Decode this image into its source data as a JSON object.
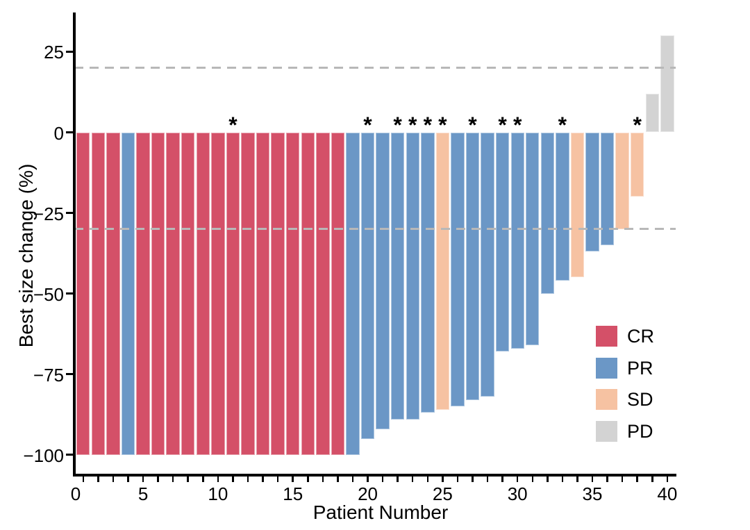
{
  "chart_data": {
    "type": "bar",
    "subtype": "waterfall",
    "title": "",
    "xlabel": "Patient Number",
    "ylabel": "Best size change (%)",
    "xlim": [
      0,
      40
    ],
    "ylim": [
      -105,
      35
    ],
    "grid": false,
    "x_ticks": [
      0,
      5,
      10,
      15,
      20,
      25,
      30,
      35,
      40
    ],
    "x_minor_ticks_at_every_bar": true,
    "y_ticks": [
      25,
      0,
      -25,
      -50,
      -75,
      -100
    ],
    "y_tick_labels": [
      "25",
      "0",
      "−25",
      "−50",
      "−75",
      "−100"
    ],
    "reference_lines": [
      20,
      -30
    ],
    "reference_line_style": "dashed",
    "reference_line_color": "#b8b8b8",
    "legend_position": "right-middle",
    "legend": [
      {
        "label": "CR",
        "color": "#d45068"
      },
      {
        "label": "PR",
        "color": "#6b97c6"
      },
      {
        "label": "SD",
        "color": "#f6c2a2"
      },
      {
        "label": "PD",
        "color": "#d3d3d3"
      }
    ],
    "star_symbol": "*",
    "starred_patients": [
      11,
      20,
      22,
      23,
      24,
      25,
      27,
      29,
      30,
      33,
      38
    ],
    "patients": [
      {
        "patient": 1,
        "value": -100,
        "response": "CR",
        "star": false
      },
      {
        "patient": 2,
        "value": -100,
        "response": "CR",
        "star": false
      },
      {
        "patient": 3,
        "value": -100,
        "response": "CR",
        "star": false
      },
      {
        "patient": 4,
        "value": -100,
        "response": "PR",
        "star": false
      },
      {
        "patient": 5,
        "value": -100,
        "response": "CR",
        "star": false
      },
      {
        "patient": 6,
        "value": -100,
        "response": "CR",
        "star": false
      },
      {
        "patient": 7,
        "value": -100,
        "response": "CR",
        "star": false
      },
      {
        "patient": 8,
        "value": -100,
        "response": "CR",
        "star": false
      },
      {
        "patient": 9,
        "value": -100,
        "response": "CR",
        "star": false
      },
      {
        "patient": 10,
        "value": -100,
        "response": "CR",
        "star": false
      },
      {
        "patient": 11,
        "value": -100,
        "response": "CR",
        "star": true
      },
      {
        "patient": 12,
        "value": -100,
        "response": "CR",
        "star": false
      },
      {
        "patient": 13,
        "value": -100,
        "response": "CR",
        "star": false
      },
      {
        "pat": 14,
        "patient": 14,
        "value": -100,
        "response": "CR",
        "star": false
      },
      {
        "patient": 15,
        "value": -100,
        "response": "CR",
        "star": false
      },
      {
        "patient": 16,
        "value": -100,
        "response": "CR",
        "star": false
      },
      {
        "patient": 17,
        "value": -100,
        "response": "CR",
        "star": false
      },
      {
        "patient": 18,
        "value": -100,
        "response": "CR",
        "star": false
      },
      {
        "patient": 19,
        "value": -100,
        "response": "PR",
        "star": false
      },
      {
        "patient": 20,
        "value": -95,
        "response": "PR",
        "star": true
      },
      {
        "patient": 21,
        "value": -92,
        "response": "PR",
        "star": false
      },
      {
        "patient": 22,
        "value": -89,
        "response": "PR",
        "star": true
      },
      {
        "patient": 23,
        "value": -89,
        "response": "PR",
        "star": true
      },
      {
        "patient": 24,
        "value": -87,
        "response": "PR",
        "star": true
      },
      {
        "patient": 25,
        "value": -86,
        "response": "SD",
        "star": true
      },
      {
        "patient": 26,
        "value": -85,
        "response": "PR",
        "star": false
      },
      {
        "patient": 27,
        "value": -83,
        "response": "PR",
        "star": true
      },
      {
        "patient": 28,
        "value": -82,
        "response": "PR",
        "star": false
      },
      {
        "patient": 29,
        "value": -68,
        "response": "PR",
        "star": true
      },
      {
        "patient": 30,
        "value": -67,
        "response": "PR",
        "star": true
      },
      {
        "patient": 31,
        "value": -66,
        "response": "PR",
        "star": false
      },
      {
        "patient": 32,
        "value": -50,
        "response": "PR",
        "star": false
      },
      {
        "patient": 33,
        "value": -46,
        "response": "PR",
        "star": true
      },
      {
        "patient": 34,
        "value": -45,
        "response": "SD",
        "star": false
      },
      {
        "patient": 35,
        "value": -37,
        "response": "PR",
        "star": false
      },
      {
        "patient": 36,
        "value": -35,
        "response": "PR",
        "star": false
      },
      {
        "patient": 37,
        "value": -30,
        "response": "SD",
        "star": false
      },
      {
        "patient": 38,
        "value": -20,
        "response": "SD",
        "star": true
      },
      {
        "patient": 39,
        "value": 12,
        "response": "PD",
        "star": false
      },
      {
        "patient": 40,
        "value": 30,
        "response": "PD",
        "star": false
      }
    ]
  }
}
